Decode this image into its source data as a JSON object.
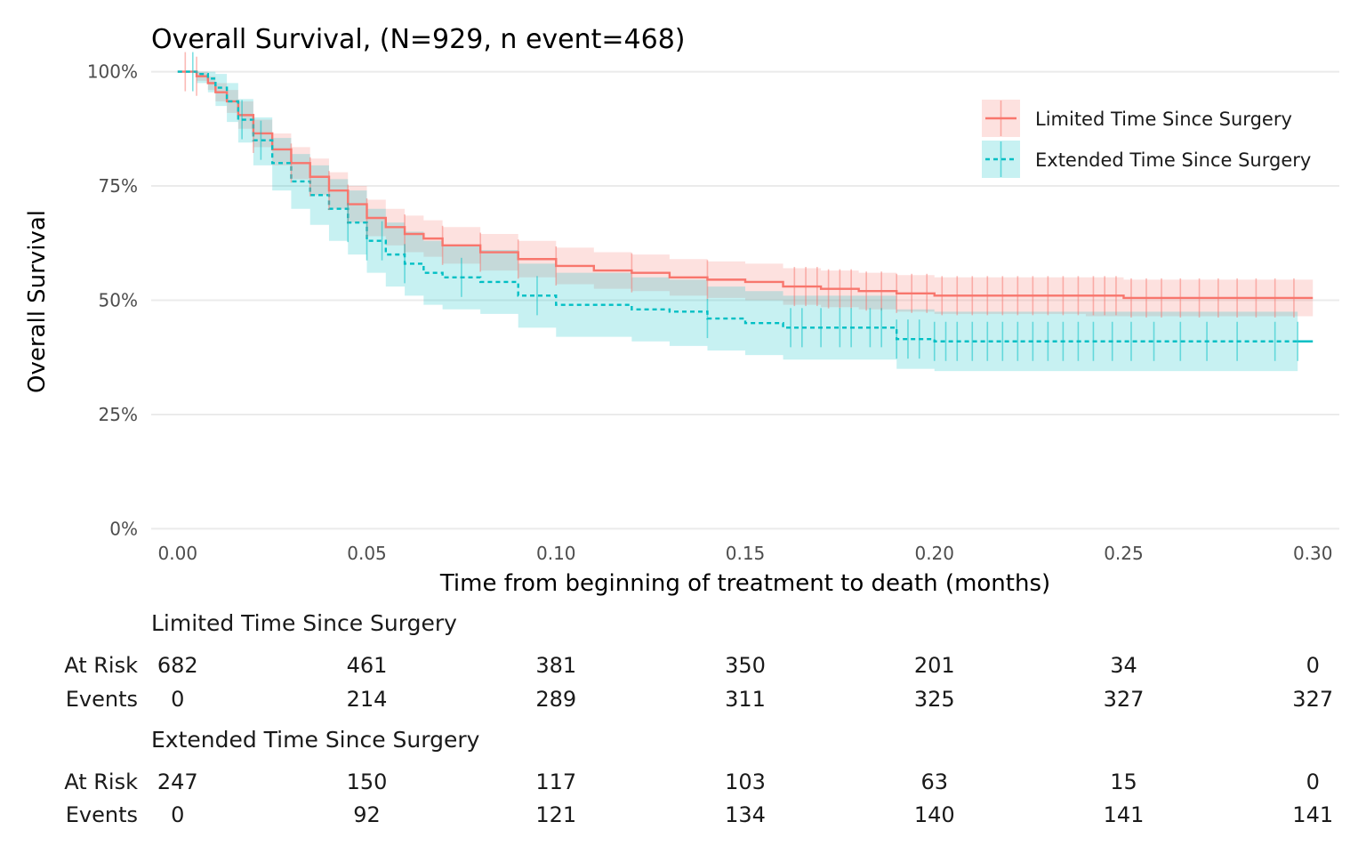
{
  "chart_data": {
    "type": "line",
    "title": "Overall Survival, (N=929, n event=468)",
    "xlabel": "Time from beginning of treatment to death (months)",
    "ylabel": "Overall Survival",
    "xlim": [
      -0.007,
      0.307
    ],
    "ylim": [
      -0.005,
      1.005
    ],
    "x_ticks": [
      0.0,
      0.05,
      0.1,
      0.15,
      0.2,
      0.25,
      0.3
    ],
    "x_tick_labels": [
      "0.00",
      "0.05",
      "0.10",
      "0.15",
      "0.20",
      "0.25",
      "0.30"
    ],
    "y_ticks": [
      0,
      0.25,
      0.5,
      0.75,
      1.0
    ],
    "y_tick_labels": [
      "0%",
      "25%",
      "50%",
      "75%",
      "100%"
    ],
    "grid": "horizontal",
    "legend_position": "top-right",
    "series": [
      {
        "name": "Limited Time Since Surgery",
        "color": "#F8766D",
        "line_style": "solid",
        "x": [
          0.0,
          0.005,
          0.008,
          0.01,
          0.013,
          0.016,
          0.02,
          0.025,
          0.03,
          0.035,
          0.04,
          0.045,
          0.05,
          0.055,
          0.06,
          0.065,
          0.07,
          0.08,
          0.09,
          0.1,
          0.11,
          0.12,
          0.13,
          0.14,
          0.15,
          0.16,
          0.17,
          0.18,
          0.19,
          0.2,
          0.21,
          0.22,
          0.24,
          0.25,
          0.3
        ],
        "y": [
          1.0,
          0.99,
          0.975,
          0.955,
          0.935,
          0.905,
          0.865,
          0.83,
          0.8,
          0.77,
          0.74,
          0.71,
          0.68,
          0.66,
          0.645,
          0.635,
          0.62,
          0.605,
          0.59,
          0.575,
          0.565,
          0.56,
          0.55,
          0.545,
          0.54,
          0.53,
          0.525,
          0.52,
          0.515,
          0.51,
          0.51,
          0.51,
          0.51,
          0.505,
          0.505
        ],
        "lower": [
          1.0,
          0.98,
          0.96,
          0.935,
          0.91,
          0.875,
          0.835,
          0.795,
          0.765,
          0.73,
          0.7,
          0.67,
          0.64,
          0.62,
          0.605,
          0.595,
          0.58,
          0.565,
          0.55,
          0.535,
          0.525,
          0.52,
          0.51,
          0.505,
          0.5,
          0.49,
          0.485,
          0.48,
          0.475,
          0.47,
          0.47,
          0.47,
          0.465,
          0.465,
          0.465
        ],
        "upper": [
          1.0,
          1.0,
          0.99,
          0.975,
          0.96,
          0.935,
          0.895,
          0.865,
          0.835,
          0.81,
          0.78,
          0.75,
          0.72,
          0.7,
          0.685,
          0.675,
          0.66,
          0.645,
          0.63,
          0.615,
          0.605,
          0.6,
          0.59,
          0.585,
          0.58,
          0.57,
          0.565,
          0.56,
          0.555,
          0.55,
          0.55,
          0.55,
          0.55,
          0.545,
          0.545
        ],
        "censor_x": [
          0.002,
          0.005,
          0.02,
          0.03,
          0.035,
          0.04,
          0.045,
          0.05,
          0.06,
          0.07,
          0.08,
          0.09,
          0.1,
          0.12,
          0.14,
          0.163,
          0.166,
          0.169,
          0.172,
          0.175,
          0.178,
          0.182,
          0.186,
          0.19,
          0.194,
          0.198,
          0.202,
          0.206,
          0.21,
          0.214,
          0.218,
          0.222,
          0.226,
          0.23,
          0.234,
          0.238,
          0.242,
          0.245,
          0.248,
          0.252,
          0.256,
          0.26,
          0.265,
          0.27,
          0.275,
          0.28,
          0.285,
          0.29,
          0.295
        ]
      },
      {
        "name": "Extended Time Since Surgery",
        "color": "#00BFC4",
        "line_style": "dashed",
        "x": [
          0.0,
          0.005,
          0.008,
          0.01,
          0.013,
          0.016,
          0.02,
          0.025,
          0.03,
          0.035,
          0.04,
          0.045,
          0.05,
          0.055,
          0.06,
          0.065,
          0.07,
          0.08,
          0.09,
          0.1,
          0.11,
          0.12,
          0.13,
          0.14,
          0.15,
          0.16,
          0.17,
          0.18,
          0.19,
          0.2,
          0.21,
          0.22,
          0.24,
          0.25,
          0.3
        ],
        "y": [
          1.0,
          0.995,
          0.985,
          0.965,
          0.935,
          0.895,
          0.85,
          0.8,
          0.76,
          0.73,
          0.7,
          0.67,
          0.63,
          0.6,
          0.58,
          0.56,
          0.55,
          0.54,
          0.51,
          0.49,
          0.49,
          0.48,
          0.475,
          0.46,
          0.45,
          0.44,
          0.44,
          0.44,
          0.415,
          0.41,
          0.41,
          0.41,
          0.41,
          0.41,
          0.41
        ],
        "lower": [
          1.0,
          0.975,
          0.955,
          0.925,
          0.89,
          0.845,
          0.795,
          0.74,
          0.7,
          0.665,
          0.63,
          0.6,
          0.56,
          0.53,
          0.51,
          0.49,
          0.48,
          0.47,
          0.44,
          0.42,
          0.42,
          0.41,
          0.4,
          0.39,
          0.38,
          0.37,
          0.37,
          0.37,
          0.35,
          0.345,
          0.345,
          0.345,
          0.345,
          0.345,
          0.345
        ],
        "upper": [
          1.0,
          1.0,
          1.0,
          0.995,
          0.975,
          0.94,
          0.9,
          0.855,
          0.82,
          0.795,
          0.765,
          0.74,
          0.7,
          0.67,
          0.65,
          0.63,
          0.62,
          0.61,
          0.58,
          0.56,
          0.56,
          0.55,
          0.545,
          0.53,
          0.52,
          0.51,
          0.51,
          0.51,
          0.48,
          0.475,
          0.475,
          0.475,
          0.475,
          0.475,
          0.475
        ],
        "censor_x": [
          0.004,
          0.017,
          0.022,
          0.045,
          0.05,
          0.054,
          0.06,
          0.075,
          0.095,
          0.14,
          0.162,
          0.165,
          0.17,
          0.175,
          0.178,
          0.183,
          0.186,
          0.19,
          0.193,
          0.196,
          0.2,
          0.203,
          0.206,
          0.21,
          0.214,
          0.218,
          0.222,
          0.226,
          0.23,
          0.234,
          0.238,
          0.242,
          0.247,
          0.252,
          0.258,
          0.265,
          0.272,
          0.28,
          0.29,
          0.296
        ]
      }
    ],
    "risk_table": {
      "row_labels": [
        "At Risk",
        "Events"
      ],
      "groups": [
        {
          "name": "Limited Time Since Surgery",
          "at_risk": [
            "682",
            "461",
            "381",
            "350",
            "201",
            "34",
            "0"
          ],
          "events": [
            "0",
            "214",
            "289",
            "311",
            "325",
            "327",
            "327"
          ]
        },
        {
          "name": "Extended Time Since Surgery",
          "at_risk": [
            "247",
            "150",
            "117",
            "103",
            "63",
            "15",
            "0"
          ],
          "events": [
            "0",
            "92",
            "121",
            "134",
            "140",
            "141",
            "141"
          ]
        }
      ]
    }
  }
}
